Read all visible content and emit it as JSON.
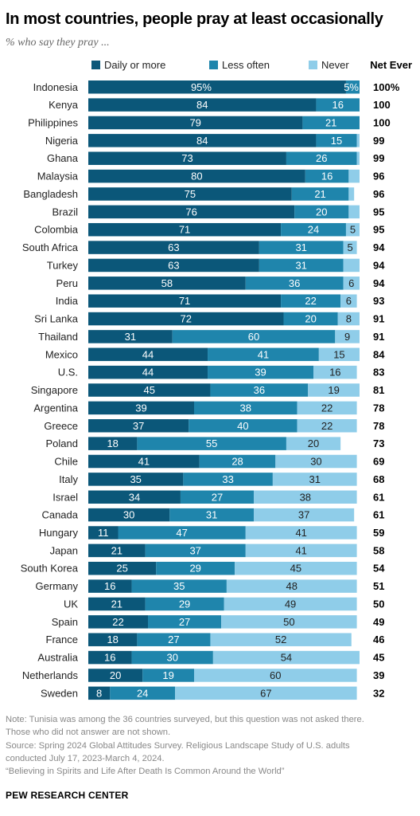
{
  "header": {
    "title": "In most countries, people pray at least occasionally",
    "subtitle": "% who say they pray ..."
  },
  "legend": {
    "items": [
      {
        "label": "Daily or more",
        "color": "#0b5779"
      },
      {
        "label": "Less often",
        "color": "#1f85ac"
      },
      {
        "label": "Never",
        "color": "#8fcde9"
      }
    ],
    "net_label": "Net Ever"
  },
  "chart_data": {
    "type": "bar",
    "orientation": "horizontal",
    "stacked": true,
    "xlim": [
      0,
      100
    ],
    "categories": [
      "Indonesia",
      "Kenya",
      "Philippines",
      "Nigeria",
      "Ghana",
      "Malaysia",
      "Bangladesh",
      "Brazil",
      "Colombia",
      "South Africa",
      "Turkey",
      "Peru",
      "India",
      "Sri Lanka",
      "Thailand",
      "Mexico",
      "U.S.",
      "Singapore",
      "Argentina",
      "Greece",
      "Poland",
      "Chile",
      "Italy",
      "Israel",
      "Canada",
      "Hungary",
      "Japan",
      "South Korea",
      "Germany",
      "UK",
      "Spain",
      "France",
      "Australia",
      "Netherlands",
      "Sweden"
    ],
    "series": [
      {
        "name": "Daily or more",
        "color": "#0b5779",
        "values": [
          95,
          84,
          79,
          84,
          73,
          80,
          75,
          76,
          71,
          63,
          63,
          58,
          71,
          72,
          31,
          44,
          44,
          45,
          39,
          37,
          18,
          41,
          35,
          34,
          30,
          11,
          21,
          25,
          16,
          21,
          22,
          18,
          16,
          20,
          8
        ]
      },
      {
        "name": "Less often",
        "color": "#1f85ac",
        "values": [
          5,
          16,
          21,
          15,
          26,
          16,
          21,
          20,
          24,
          31,
          31,
          36,
          22,
          20,
          60,
          41,
          39,
          36,
          38,
          40,
          55,
          28,
          33,
          27,
          31,
          47,
          37,
          29,
          35,
          29,
          27,
          27,
          30,
          19,
          24
        ]
      },
      {
        "name": "Never",
        "color": "#8fcde9",
        "values": [
          0,
          0,
          0,
          1,
          1,
          4,
          2,
          4,
          5,
          5,
          6,
          6,
          6,
          8,
          9,
          15,
          16,
          19,
          22,
          22,
          20,
          30,
          31,
          38,
          37,
          41,
          41,
          45,
          48,
          49,
          50,
          52,
          54,
          60,
          67
        ]
      }
    ],
    "labels": {
      "Daily or more": [
        "95%",
        "84",
        "79",
        "84",
        "73",
        "80",
        "75",
        "76",
        "71",
        "63",
        "63",
        "58",
        "71",
        "72",
        "31",
        "44",
        "44",
        "45",
        "39",
        "37",
        "18",
        "41",
        "35",
        "34",
        "30",
        "11",
        "21",
        "25",
        "16",
        "21",
        "22",
        "18",
        "16",
        "20",
        "8"
      ],
      "Less often": [
        "5%",
        "16",
        "21",
        "15",
        "26",
        "16",
        "21",
        "20",
        "24",
        "31",
        "31",
        "36",
        "22",
        "20",
        "60",
        "41",
        "39",
        "36",
        "38",
        "40",
        "55",
        "28",
        "33",
        "27",
        "31",
        "47",
        "37",
        "29",
        "35",
        "29",
        "27",
        "27",
        "30",
        "19",
        "24"
      ],
      "Never": [
        "",
        "",
        "",
        "",
        "",
        "",
        "",
        "",
        "5",
        "5",
        "",
        "6",
        "6",
        "8",
        "9",
        "15",
        "16",
        "19",
        "22",
        "22",
        "20",
        "30",
        "31",
        "38",
        "37",
        "41",
        "41",
        "45",
        "48",
        "49",
        "50",
        "52",
        "54",
        "60",
        "67"
      ]
    },
    "net_ever": [
      "100%",
      "100",
      "100",
      "99",
      "99",
      "96",
      "96",
      "95",
      "95",
      "94",
      "94",
      "94",
      "93",
      "91",
      "91",
      "84",
      "83",
      "81",
      "78",
      "78",
      "73",
      "69",
      "68",
      "61",
      "61",
      "59",
      "58",
      "54",
      "51",
      "50",
      "49",
      "46",
      "45",
      "39",
      "32"
    ]
  },
  "footer": {
    "note_line1": "Note: Tunisia was among the 36 countries surveyed, but this question was not asked there.",
    "note_line2": "Those who did not answer are not shown.",
    "source_line1": "Source: Spring 2024 Global Attitudes Survey. Religious Landscape Study of U.S. adults",
    "source_line2": "conducted July 17, 2023-March 4, 2024.",
    "report_line": "“Believing in Spirits and Life After Death Is Common Around the World”",
    "brand": "PEW RESEARCH CENTER"
  }
}
